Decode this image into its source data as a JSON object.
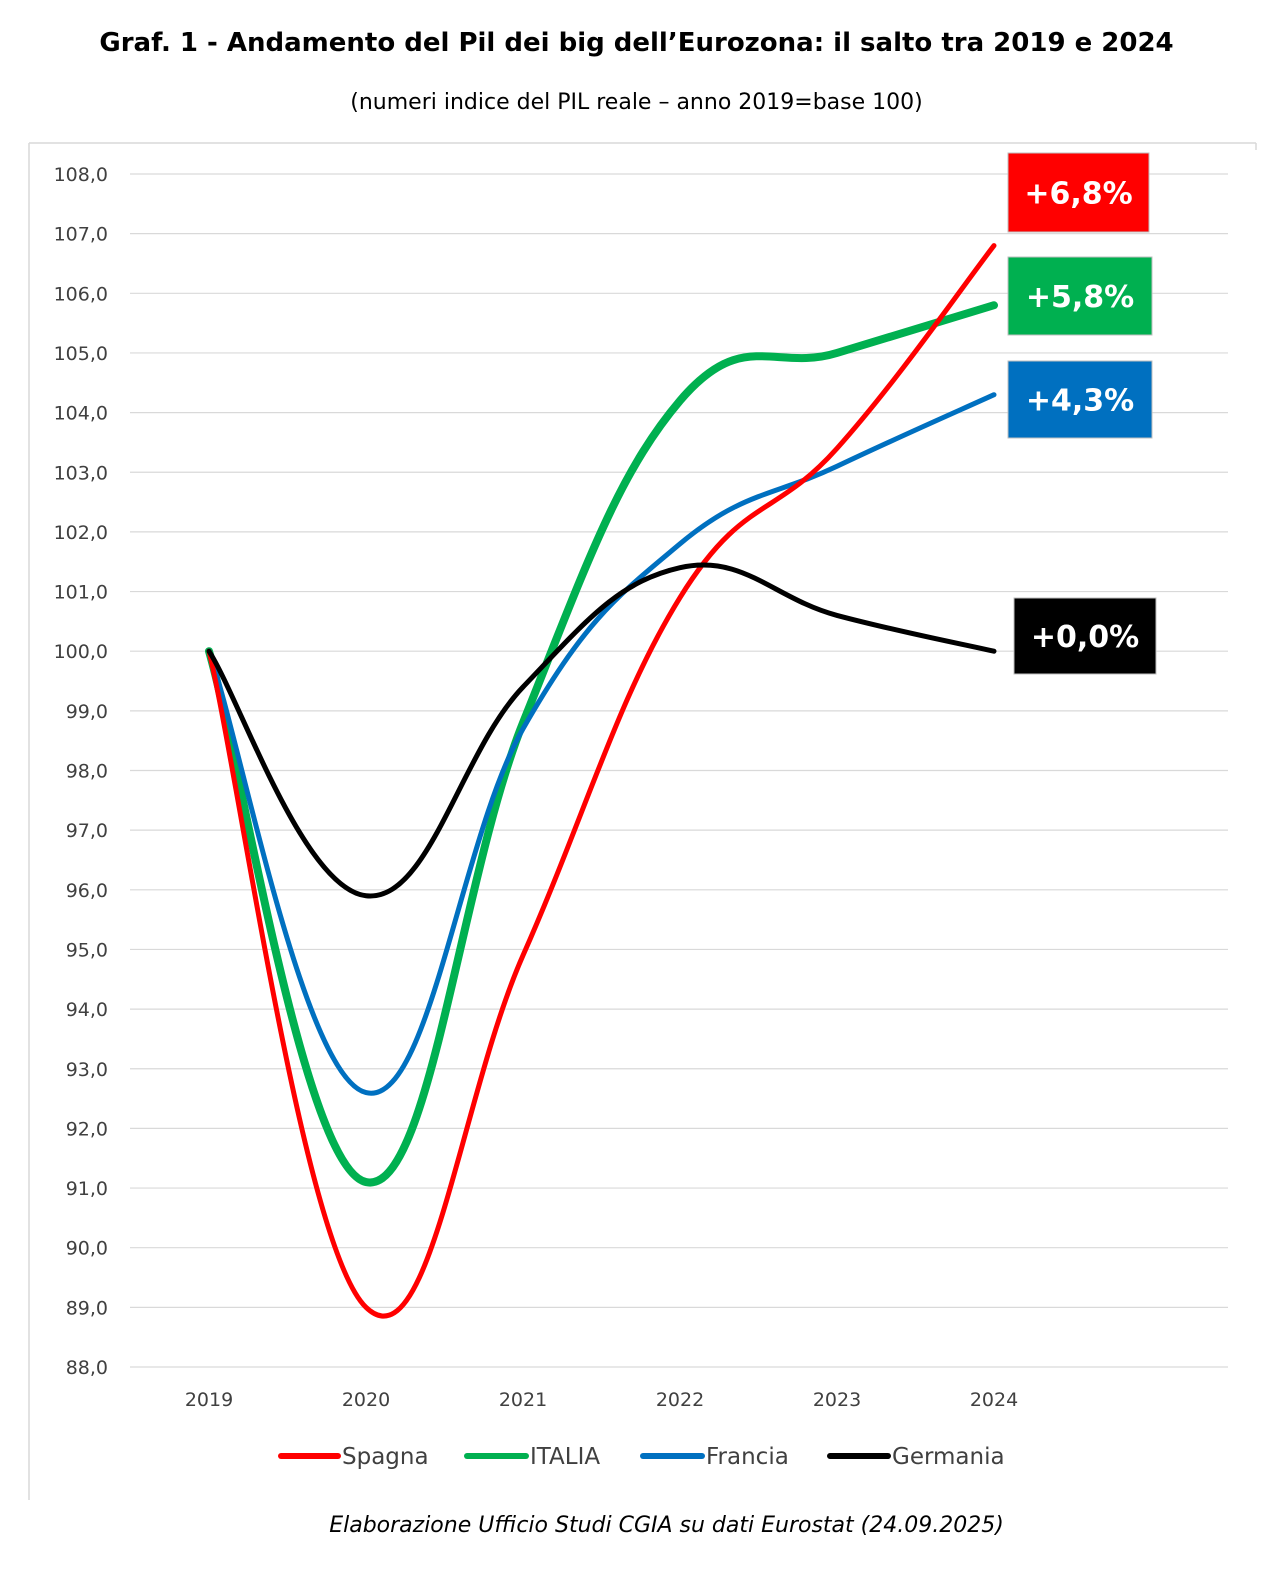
{
  "title": "Graf. 1 - Andamento del Pil dei big dell’Eurozona: il salto tra 2019 e 2024",
  "subtitle": "(numeri indice del PIL reale – anno 2019=base 100)",
  "footer": "Elaborazione Ufficio Studi CGIA su dati Eurostat (24.09.2025)",
  "chart_data": {
    "type": "line",
    "x": [
      "2019",
      "2020",
      "2021",
      "2022",
      "2023",
      "2024"
    ],
    "y_ticks": [
      "108,0",
      "107,0",
      "106,0",
      "105,0",
      "104,0",
      "103,0",
      "102,0",
      "101,0",
      "100,0",
      "99,0",
      "98,0",
      "97,0",
      "96,0",
      "95,0",
      "94,0",
      "93,0",
      "92,0",
      "91,0",
      "90,0",
      "89,0",
      "88,0"
    ],
    "ylim": [
      88,
      108
    ],
    "grid": true,
    "legend_position": "bottom",
    "series": [
      {
        "name": "Spagna",
        "color": "#ff0000",
        "values": [
          100.0,
          89.0,
          94.9,
          100.9,
          103.4,
          106.8
        ],
        "label": "+6,8%"
      },
      {
        "name": "ITALIA",
        "color": "#00b050",
        "values": [
          100.0,
          91.1,
          98.8,
          104.2,
          105.0,
          105.8
        ],
        "label": "+5,8%"
      },
      {
        "name": "Francia",
        "color": "#0070c0",
        "values": [
          100.0,
          92.6,
          98.7,
          101.8,
          103.1,
          104.3
        ],
        "label": "+4,3%"
      },
      {
        "name": "Germania",
        "color": "#000000",
        "values": [
          100.0,
          95.9,
          99.4,
          101.4,
          100.6,
          100.0
        ],
        "label": "+0,0%"
      }
    ]
  }
}
